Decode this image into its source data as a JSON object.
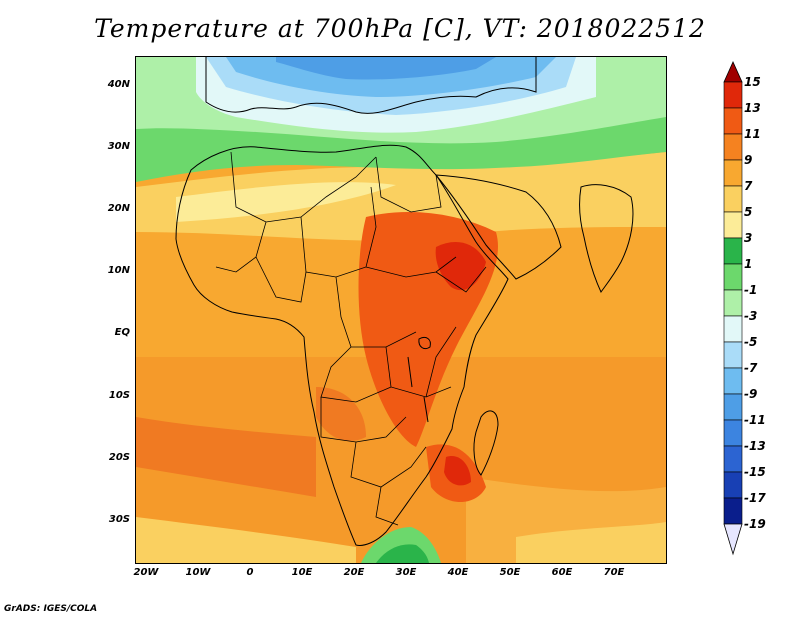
{
  "title": "Temperature at 700hPa [C], VT: 2018022512",
  "credit": "GrADS: IGES/COLA",
  "map": {
    "lon_range": [
      -22,
      80
    ],
    "lat_range": [
      -37,
      45
    ],
    "lat_labels": [
      "40N",
      "30N",
      "20N",
      "10N",
      "EQ",
      "10S",
      "20S",
      "30S"
    ],
    "lat_values": [
      40,
      30,
      20,
      10,
      0,
      -10,
      -20,
      -30
    ],
    "lon_labels": [
      "20W",
      "10W",
      "0",
      "10E",
      "20E",
      "30E",
      "40E",
      "50E",
      "60E",
      "70E"
    ],
    "lon_values": [
      -20,
      -10,
      0,
      10,
      20,
      30,
      40,
      50,
      60,
      70
    ]
  },
  "colorbar": {
    "labels": [
      "15",
      "13",
      "11",
      "9",
      "7",
      "5",
      "3",
      "1",
      "-1",
      "-3",
      "-5",
      "-7",
      "-9",
      "-11",
      "-13",
      "-15",
      "-17",
      "-19"
    ],
    "colors": [
      "#a00000",
      "#e0280a",
      "#f05a14",
      "#f58220",
      "#f8a830",
      "#fad060",
      "#fcec98",
      "#2ab44a",
      "#6cd86c",
      "#aef0a8",
      "#e2f8f8",
      "#aadcf8",
      "#6ebcf0",
      "#4e9ee6",
      "#3c84e0",
      "#2c64d2",
      "#1840b4",
      "#0a1e8c",
      "#e6e6ff"
    ]
  }
}
